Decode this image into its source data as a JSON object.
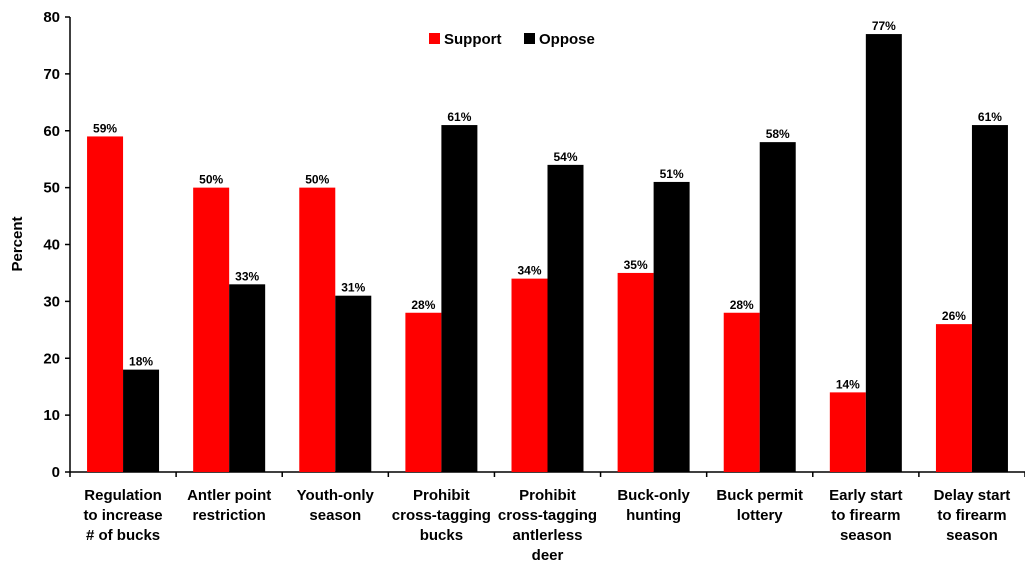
{
  "chart_data": {
    "type": "bar",
    "ylabel": "Percent",
    "ylim": [
      0,
      80
    ],
    "yticks": [
      0,
      10,
      20,
      30,
      40,
      50,
      60,
      70,
      80
    ],
    "legend_position": "top-center",
    "grid": false,
    "categories": [
      [
        "Regulation",
        "to increase",
        "# of bucks"
      ],
      [
        "Antler point",
        "restriction"
      ],
      [
        "Youth-only",
        "season"
      ],
      [
        "Prohibit",
        "cross-tagging",
        "bucks"
      ],
      [
        "Prohibit",
        "cross-tagging",
        "antlerless",
        "deer"
      ],
      [
        "Buck-only",
        "hunting"
      ],
      [
        "Buck permit",
        "lottery"
      ],
      [
        "Early start",
        "to firearm",
        "season"
      ],
      [
        "Delay start",
        "to firearm",
        "season"
      ]
    ],
    "series": [
      {
        "name": "Support",
        "color": "#ff0000",
        "values": [
          59,
          50,
          50,
          28,
          34,
          35,
          28,
          14,
          26
        ]
      },
      {
        "name": "Oppose",
        "color": "#000000",
        "values": [
          18,
          33,
          31,
          61,
          54,
          51,
          58,
          77,
          61
        ]
      }
    ]
  }
}
